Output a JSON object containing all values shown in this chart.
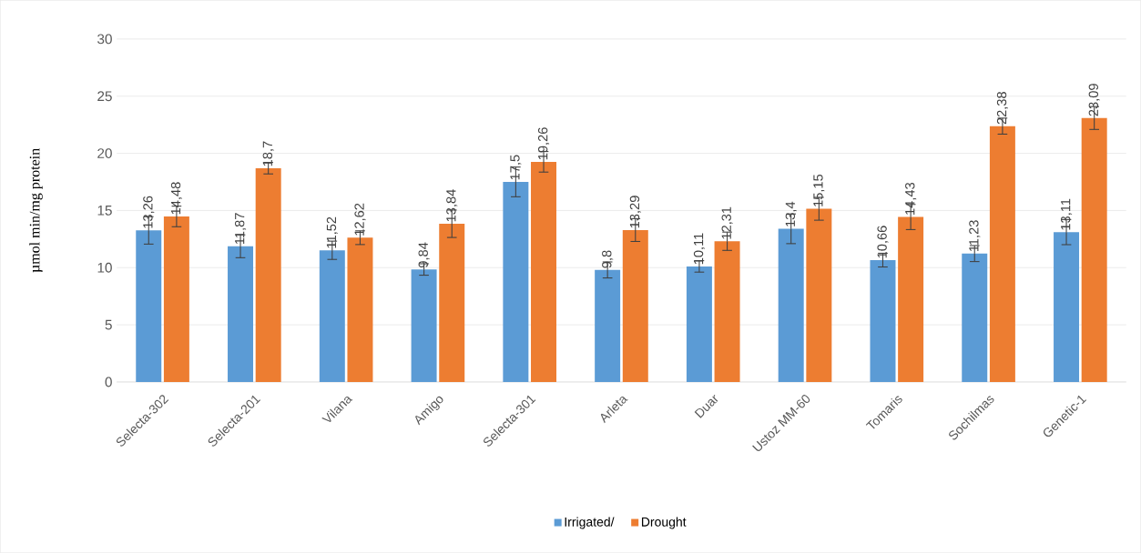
{
  "chart_data": {
    "type": "bar",
    "ylabel": "µmol min/mg protein",
    "categories": [
      "Selecta-302",
      "Selecta-201",
      "Vilana",
      "Amigo",
      "Selecta-301",
      "Arleta",
      "Duar",
      "Ustoz MM-60",
      "Tomaris",
      "Sochilmas",
      "Genetic-1"
    ],
    "series": [
      {
        "name": "Irrigated/",
        "color": "#5b9bd5",
        "values": [
          13.26,
          11.87,
          11.52,
          9.84,
          17.5,
          9.8,
          10.11,
          13.4,
          10.66,
          11.23,
          13.11
        ],
        "errors": [
          1.2,
          1.0,
          0.8,
          0.5,
          1.3,
          0.7,
          0.5,
          1.3,
          0.6,
          0.7,
          1.1
        ],
        "value_labels": [
          "13,26",
          "11,87",
          "11,52",
          "9,84",
          "17,5",
          "9,8",
          "10,11",
          "13,4",
          "10,66",
          "11,23",
          "13,11"
        ]
      },
      {
        "name": "Drought",
        "color": "#ed7d31",
        "values": [
          14.48,
          18.7,
          12.62,
          13.84,
          19.26,
          13.29,
          12.31,
          15.15,
          14.43,
          22.38,
          23.09
        ],
        "errors": [
          0.9,
          0.5,
          0.6,
          1.2,
          0.9,
          1.0,
          0.8,
          1.0,
          1.1,
          0.7,
          1.0
        ],
        "value_labels": [
          "14,48",
          "18,7",
          "12,62",
          "13,84",
          "19,26",
          "13,29",
          "12,31",
          "15,15",
          "14,43",
          "22,38",
          "23,09"
        ]
      }
    ],
    "ylim": [
      0,
      30
    ],
    "yticks": [
      0,
      5,
      10,
      15,
      20,
      25,
      30
    ],
    "grid": "y",
    "legend": "bottom"
  }
}
